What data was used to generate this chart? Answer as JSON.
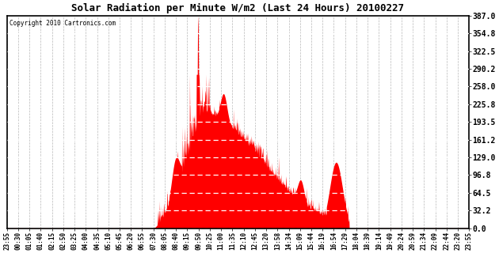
{
  "title": "Solar Radiation per Minute W/m2 (Last 24 Hours) 20100227",
  "copyright": "Copyright 2010 Cartronics.com",
  "yticks": [
    0.0,
    32.2,
    64.5,
    96.8,
    129.0,
    161.2,
    193.5,
    225.8,
    258.0,
    290.2,
    322.5,
    354.8,
    387.0
  ],
  "ymax": 387.0,
  "ymin": 0.0,
  "fill_color": "#FF0000",
  "bg_color": "#FFFFFF",
  "grid_color": "#999999",
  "x_labels": [
    "23:55",
    "00:30",
    "01:05",
    "01:40",
    "02:15",
    "02:50",
    "03:25",
    "04:00",
    "04:35",
    "05:10",
    "05:45",
    "06:20",
    "06:55",
    "07:30",
    "08:05",
    "08:40",
    "09:15",
    "09:50",
    "10:25",
    "11:00",
    "11:35",
    "12:10",
    "12:45",
    "13:20",
    "13:58",
    "14:34",
    "15:09",
    "15:44",
    "16:19",
    "16:54",
    "17:29",
    "18:04",
    "18:39",
    "19:14",
    "19:49",
    "20:24",
    "20:59",
    "21:34",
    "22:09",
    "22:44",
    "23:20",
    "23:55"
  ]
}
